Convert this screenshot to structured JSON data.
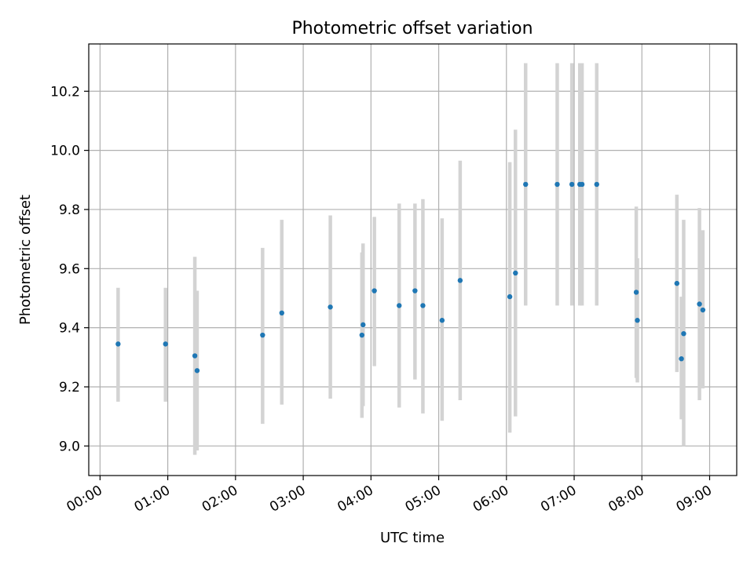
{
  "chart_data": {
    "type": "scatter",
    "title": "Photometric offset variation",
    "xlabel": "UTC time",
    "ylabel": "Photometric offset",
    "xlim": [
      "23:50",
      "09:24"
    ],
    "ylim": [
      8.9,
      10.36
    ],
    "grid": true,
    "x_ticks": [
      "00:00",
      "01:00",
      "02:00",
      "03:00",
      "04:00",
      "05:00",
      "06:00",
      "07:00",
      "08:00",
      "09:00"
    ],
    "y_ticks": [
      "9.0",
      "9.2",
      "9.4",
      "9.6",
      "9.8",
      "10.0",
      "10.2"
    ],
    "colors": {
      "point": "#1f77b4",
      "errorbar": "#d3d3d3",
      "grid": "#b0b0b0",
      "axes": "#000000"
    },
    "points": [
      {
        "time": "00:16",
        "y": 9.345,
        "lo": 9.15,
        "hi": 9.535
      },
      {
        "time": "00:58",
        "y": 9.345,
        "lo": 9.15,
        "hi": 9.535
      },
      {
        "time": "01:24",
        "y": 9.305,
        "lo": 8.97,
        "hi": 9.64
      },
      {
        "time": "01:26",
        "y": 9.255,
        "lo": 8.985,
        "hi": 9.525
      },
      {
        "time": "02:24",
        "y": 9.375,
        "lo": 9.075,
        "hi": 9.67
      },
      {
        "time": "02:41",
        "y": 9.45,
        "lo": 9.14,
        "hi": 9.765
      },
      {
        "time": "03:24",
        "y": 9.47,
        "lo": 9.16,
        "hi": 9.78
      },
      {
        "time": "03:52",
        "y": 9.375,
        "lo": 9.095,
        "hi": 9.655
      },
      {
        "time": "03:53",
        "y": 9.41,
        "lo": 9.135,
        "hi": 9.685
      },
      {
        "time": "04:03",
        "y": 9.525,
        "lo": 9.27,
        "hi": 9.775
      },
      {
        "time": "04:25",
        "y": 9.475,
        "lo": 9.13,
        "hi": 9.82
      },
      {
        "time": "04:39",
        "y": 9.525,
        "lo": 9.225,
        "hi": 9.82
      },
      {
        "time": "04:46",
        "y": 9.475,
        "lo": 9.11,
        "hi": 9.835
      },
      {
        "time": "05:03",
        "y": 9.425,
        "lo": 9.085,
        "hi": 9.77
      },
      {
        "time": "05:19",
        "y": 9.56,
        "lo": 9.155,
        "hi": 9.965
      },
      {
        "time": "06:03",
        "y": 9.505,
        "lo": 9.045,
        "hi": 9.96
      },
      {
        "time": "06:08",
        "y": 9.585,
        "lo": 9.1,
        "hi": 10.07
      },
      {
        "time": "06:17",
        "y": 9.885,
        "lo": 9.475,
        "hi": 10.295
      },
      {
        "time": "06:45",
        "y": 9.885,
        "lo": 9.475,
        "hi": 10.295
      },
      {
        "time": "06:58",
        "y": 9.885,
        "lo": 9.475,
        "hi": 10.295
      },
      {
        "time": "07:05",
        "y": 9.885,
        "lo": 9.475,
        "hi": 10.295
      },
      {
        "time": "07:07",
        "y": 9.885,
        "lo": 9.475,
        "hi": 10.295
      },
      {
        "time": "07:20",
        "y": 9.885,
        "lo": 9.475,
        "hi": 10.295
      },
      {
        "time": "07:55",
        "y": 9.52,
        "lo": 9.23,
        "hi": 9.81
      },
      {
        "time": "07:56",
        "y": 9.425,
        "lo": 9.215,
        "hi": 9.635
      },
      {
        "time": "08:31",
        "y": 9.55,
        "lo": 9.25,
        "hi": 9.85
      },
      {
        "time": "08:35",
        "y": 9.295,
        "lo": 9.09,
        "hi": 9.505
      },
      {
        "time": "08:37",
        "y": 9.38,
        "lo": 9.0,
        "hi": 9.765
      },
      {
        "time": "08:51",
        "y": 9.48,
        "lo": 9.155,
        "hi": 9.805
      },
      {
        "time": "08:54",
        "y": 9.46,
        "lo": 9.195,
        "hi": 9.73
      }
    ]
  }
}
